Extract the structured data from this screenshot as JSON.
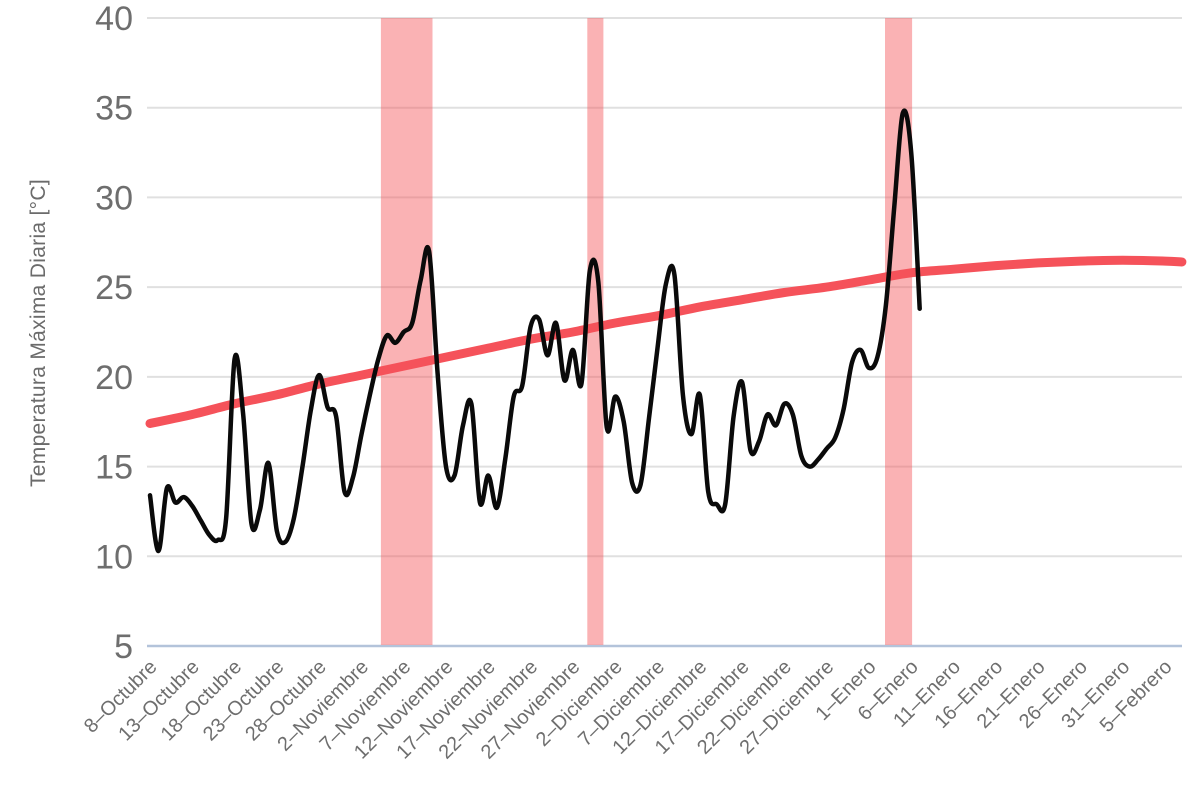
{
  "chart_data": {
    "type": "line",
    "title": "",
    "xlabel": "",
    "ylabel": "Temperatura Máxima Diaria [°C]",
    "ylim": [
      5,
      40
    ],
    "y_ticks": [
      5,
      10,
      15,
      20,
      25,
      30,
      35,
      40
    ],
    "grid": "horizontal",
    "legend": "none",
    "x_tick_labels": [
      "8–Octubre",
      "13–Octubre",
      "18–Octubre",
      "23–Octubre",
      "28–Octubre",
      "2–Noviembre",
      "7–Noviembre",
      "12–Noviembre",
      "17–Noviembre",
      "22–Noviembre",
      "27–Noviembre",
      "2–Diciembre",
      "7–Diciembre",
      "12–Diciembre",
      "17–Diciembre",
      "22–Diciembre",
      "27–Diciembre",
      "1–Enero",
      "6–Enero",
      "11–Enero",
      "16–Enero",
      "21–Enero",
      "26–Enero",
      "31–Enero",
      "5–Febrero"
    ],
    "x_tick_days": [
      0,
      5,
      10,
      15,
      20,
      25,
      30,
      35,
      40,
      45,
      50,
      55,
      60,
      65,
      70,
      75,
      80,
      85,
      90,
      95,
      100,
      105,
      110,
      115,
      120
    ],
    "series": [
      {
        "name": "daily-max-temperature",
        "color": "#0a0a0a",
        "stroke_width": 4.5,
        "start_day": 0,
        "values": [
          13.4,
          10.3,
          13.8,
          13.0,
          13.3,
          12.8,
          12.0,
          11.2,
          10.9,
          12.1,
          21.0,
          18.0,
          11.8,
          12.6,
          15.2,
          11.4,
          10.8,
          12.1,
          14.9,
          18.1,
          20.1,
          18.3,
          17.8,
          13.6,
          14.4,
          16.8,
          19.0,
          21.0,
          22.3,
          21.9,
          22.5,
          23.0,
          25.4,
          27.0,
          20.2,
          15.0,
          14.5,
          17.3,
          18.5,
          13.0,
          14.5,
          12.7,
          15.4,
          18.9,
          19.5,
          22.8,
          23.2,
          21.2,
          23.0,
          19.8,
          21.5,
          19.6,
          25.9,
          25.3,
          17.2,
          18.9,
          17.5,
          14.1,
          14.0,
          17.7,
          21.6,
          25.2,
          25.7,
          19.0,
          16.8,
          19.0,
          13.6,
          12.9,
          12.9,
          17.8,
          19.7,
          15.9,
          16.4,
          17.9,
          17.3,
          18.5,
          17.9,
          15.6,
          15.0,
          15.4,
          16.0,
          16.6,
          18.2,
          20.8,
          21.5,
          20.5,
          21.1,
          24.0,
          29.5,
          34.7,
          32.5,
          23.8
        ]
      },
      {
        "name": "smoothed-seasonal-trend",
        "color": "#f5525a",
        "stroke_width": 9,
        "x_days": [
          0,
          5,
          10,
          15,
          20,
          25,
          30,
          35,
          40,
          45,
          50,
          55,
          60,
          65,
          70,
          75,
          80,
          85,
          90,
          95,
          100,
          105,
          110,
          115,
          120,
          122
        ],
        "values": [
          17.4,
          17.9,
          18.5,
          19.0,
          19.6,
          20.1,
          20.6,
          21.1,
          21.6,
          22.1,
          22.5,
          23.0,
          23.4,
          23.9,
          24.3,
          24.7,
          25.0,
          25.4,
          25.8,
          26.0,
          26.2,
          26.35,
          26.45,
          26.5,
          26.45,
          26.4
        ]
      }
    ],
    "highlight_bands": [
      {
        "name": "band-noviembre",
        "from_day": 27.3,
        "to_day": 33.4
      },
      {
        "name": "band-diciembre",
        "from_day": 51.7,
        "to_day": 53.6
      },
      {
        "name": "band-enero",
        "from_day": 86.9,
        "to_day": 90.1
      }
    ],
    "colors": {
      "band_fill": "rgba(244,84,88,0.45)",
      "gridline": "#e0e0e0",
      "baseline": "#b3c3da",
      "tick_text": "#6e6e6e"
    }
  }
}
